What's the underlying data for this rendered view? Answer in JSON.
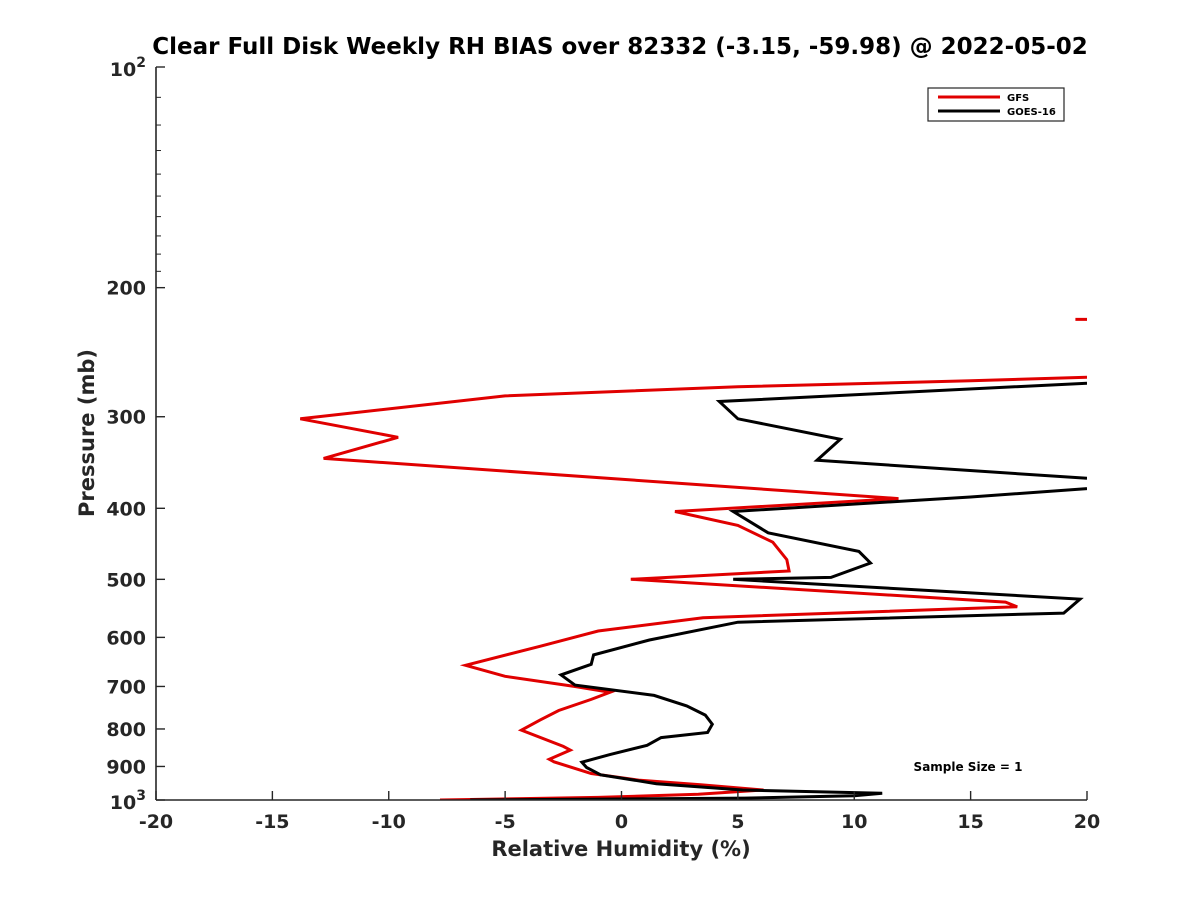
{
  "chart_data": {
    "type": "line",
    "title": "Clear Full Disk Weekly RH BIAS over 82332 (-3.15, -59.98) @ 2022-05-02",
    "xlabel": "Relative Humidity (%)",
    "ylabel": "Pressure (mb)",
    "xlim": [
      -20,
      20
    ],
    "ylim": [
      100,
      1000
    ],
    "y_scale": "log",
    "y_reversed": true,
    "grid": false,
    "legend_position": "top-right",
    "x_ticks": [
      "-20",
      "-15",
      "-10",
      "-5",
      "0",
      "5",
      "10",
      "15",
      "20"
    ],
    "y_ticks": [
      {
        "value": 200,
        "label": "200"
      },
      {
        "value": 300,
        "label": "300"
      },
      {
        "value": 400,
        "label": "400"
      },
      {
        "value": 500,
        "label": "500"
      },
      {
        "value": 600,
        "label": "600"
      },
      {
        "value": 700,
        "label": "700"
      },
      {
        "value": 800,
        "label": "800"
      },
      {
        "value": 900,
        "label": "900"
      }
    ],
    "y_power_ticks": [
      {
        "value": 100,
        "base": "10",
        "exp": "2"
      },
      {
        "value": 1000,
        "base": "10",
        "exp": "3"
      }
    ],
    "series": [
      {
        "name": "GFS",
        "color": "#e00000",
        "points": [
          [
            19.5,
            221
          ],
          [
            20.5,
            221
          ],
          [
            null,
            null
          ],
          [
            20,
            265
          ],
          [
            15,
            268
          ],
          [
            5,
            273
          ],
          [
            -5,
            281
          ],
          [
            -13.8,
            302
          ],
          [
            -9.6,
            320
          ],
          [
            -12.8,
            342
          ],
          [
            2.6,
            370
          ],
          [
            11.9,
            388
          ],
          [
            2.3,
            404
          ],
          [
            5,
            422
          ],
          [
            6.5,
            445
          ],
          [
            7.1,
            470
          ],
          [
            7.2,
            487
          ],
          [
            0.4,
            500
          ],
          [
            16.5,
            537
          ],
          [
            17,
            545
          ],
          [
            3.5,
            564
          ],
          [
            -1,
            588
          ],
          [
            -3.5,
            617
          ],
          [
            -6.7,
            655
          ],
          [
            -5,
            678
          ],
          [
            -2,
            700
          ],
          [
            -0.5,
            713
          ],
          [
            -1.3,
            729
          ],
          [
            -2.7,
            755
          ],
          [
            -3.5,
            778
          ],
          [
            -4.3,
            803
          ],
          [
            -2.5,
            845
          ],
          [
            -2.2,
            855
          ],
          [
            -3.1,
            880
          ],
          [
            -2.9,
            887
          ],
          [
            -1.3,
            920
          ],
          [
            0.8,
            940
          ],
          [
            3.4,
            953
          ],
          [
            6.1,
            969
          ],
          [
            3.3,
            982
          ],
          [
            -1,
            992
          ],
          [
            -7.8,
            1000
          ]
        ]
      },
      {
        "name": "GOES-16",
        "color": "#000000",
        "points": [
          [
            20,
            270
          ],
          [
            4.2,
            286
          ],
          [
            5,
            302
          ],
          [
            9.4,
            322
          ],
          [
            8.4,
            344
          ],
          [
            20,
            364
          ],
          [
            null,
            null
          ],
          [
            20,
            376
          ],
          [
            15,
            386
          ],
          [
            4.8,
            404
          ],
          [
            6.3,
            432
          ],
          [
            10.2,
            458
          ],
          [
            10.7,
            475
          ],
          [
            9,
            497
          ],
          [
            4.8,
            500
          ],
          [
            19.7,
            532
          ],
          [
            19,
            556
          ],
          [
            5,
            572
          ],
          [
            1.2,
            605
          ],
          [
            -1.2,
            634
          ],
          [
            -1.3,
            653
          ],
          [
            -2.6,
            675
          ],
          [
            -2,
            697
          ],
          [
            1.4,
            720
          ],
          [
            2.8,
            744
          ],
          [
            3.6,
            766
          ],
          [
            3.9,
            788
          ],
          [
            3.7,
            809
          ],
          [
            1.7,
            822
          ],
          [
            1.1,
            842
          ],
          [
            -0.5,
            867
          ],
          [
            -1.7,
            888
          ],
          [
            -1.5,
            903
          ],
          [
            -0.9,
            924
          ],
          [
            1.5,
            950
          ],
          [
            5.2,
            969
          ],
          [
            11.2,
            979
          ],
          [
            10,
            987
          ],
          [
            5.3,
            994
          ],
          [
            -6.5,
            1000
          ]
        ]
      }
    ],
    "annotations": [
      "Sample Size = 1"
    ]
  }
}
